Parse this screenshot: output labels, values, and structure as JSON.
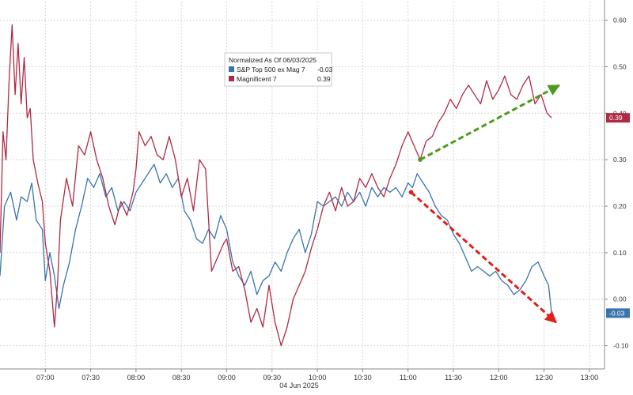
{
  "chart_data": {
    "type": "line",
    "legend_title": "Normalized As Of 06/03/2025",
    "date_label": "04 Jun 2025",
    "x_ticks": [
      "07:00",
      "07:30",
      "08:00",
      "08:30",
      "09:00",
      "09:30",
      "10:00",
      "10:30",
      "11:00",
      "11:30",
      "12:00",
      "12:30",
      "13:00"
    ],
    "y_ticks": [
      "0.60",
      "0.50",
      "0.40",
      "0.30",
      "0.20",
      "0.10",
      "0.00",
      "-0.10"
    ],
    "ylim": [
      -0.15,
      0.64
    ],
    "xlim": [
      "06:30",
      "13:10"
    ],
    "grid": true,
    "legend_position": "top-center",
    "series": [
      {
        "name": "S&P Top 500 ex Mag 7",
        "last_label": "-0.03",
        "color": "#3a74ad",
        "points": [
          [
            "06:30",
            0.05
          ],
          [
            "06:33",
            0.2
          ],
          [
            "06:37",
            0.23
          ],
          [
            "06:41",
            0.17
          ],
          [
            "06:44",
            0.22
          ],
          [
            "06:48",
            0.21
          ],
          [
            "06:51",
            0.25
          ],
          [
            "06:54",
            0.17
          ],
          [
            "06:58",
            0.15
          ],
          [
            "07:00",
            0.04
          ],
          [
            "07:03",
            0.1
          ],
          [
            "07:06",
            0.05
          ],
          [
            "07:09",
            -0.02
          ],
          [
            "07:12",
            0.03
          ],
          [
            "07:16",
            0.08
          ],
          [
            "07:20",
            0.15
          ],
          [
            "07:24",
            0.2
          ],
          [
            "07:28",
            0.26
          ],
          [
            "07:32",
            0.24
          ],
          [
            "07:36",
            0.27
          ],
          [
            "07:40",
            0.22
          ],
          [
            "07:44",
            0.24
          ],
          [
            "07:48",
            0.19
          ],
          [
            "07:52",
            0.21
          ],
          [
            "07:56",
            0.19
          ],
          [
            "08:00",
            0.23
          ],
          [
            "08:04",
            0.25
          ],
          [
            "08:08",
            0.27
          ],
          [
            "08:12",
            0.29
          ],
          [
            "08:16",
            0.25
          ],
          [
            "08:20",
            0.27
          ],
          [
            "08:24",
            0.24
          ],
          [
            "08:28",
            0.26
          ],
          [
            "08:32",
            0.19
          ],
          [
            "08:36",
            0.17
          ],
          [
            "08:40",
            0.13
          ],
          [
            "08:44",
            0.12
          ],
          [
            "08:48",
            0.15
          ],
          [
            "08:52",
            0.13
          ],
          [
            "08:56",
            0.18
          ],
          [
            "09:00",
            0.15
          ],
          [
            "09:04",
            0.08
          ],
          [
            "09:08",
            0.05
          ],
          [
            "09:12",
            0.03
          ],
          [
            "09:16",
            0.06
          ],
          [
            "09:20",
            0.01
          ],
          [
            "09:24",
            0.04
          ],
          [
            "09:28",
            0.05
          ],
          [
            "09:32",
            0.08
          ],
          [
            "09:36",
            0.06
          ],
          [
            "09:40",
            0.1
          ],
          [
            "09:44",
            0.13
          ],
          [
            "09:48",
            0.15
          ],
          [
            "09:52",
            0.1
          ],
          [
            "09:56",
            0.14
          ],
          [
            "10:00",
            0.21
          ],
          [
            "10:04",
            0.2
          ],
          [
            "10:08",
            0.21
          ],
          [
            "10:12",
            0.22
          ],
          [
            "10:16",
            0.2
          ],
          [
            "10:20",
            0.23
          ],
          [
            "10:24",
            0.21
          ],
          [
            "10:28",
            0.23
          ],
          [
            "10:32",
            0.2
          ],
          [
            "10:36",
            0.24
          ],
          [
            "10:40",
            0.22
          ],
          [
            "10:44",
            0.24
          ],
          [
            "10:48",
            0.23
          ],
          [
            "10:52",
            0.24
          ],
          [
            "10:56",
            0.22
          ],
          [
            "11:00",
            0.25
          ],
          [
            "11:03",
            0.24
          ],
          [
            "11:06",
            0.27
          ],
          [
            "11:10",
            0.25
          ],
          [
            "11:14",
            0.23
          ],
          [
            "11:18",
            0.2
          ],
          [
            "11:22",
            0.18
          ],
          [
            "11:26",
            0.17
          ],
          [
            "11:30",
            0.14
          ],
          [
            "11:34",
            0.12
          ],
          [
            "11:38",
            0.09
          ],
          [
            "11:42",
            0.06
          ],
          [
            "11:46",
            0.07
          ],
          [
            "11:50",
            0.06
          ],
          [
            "11:54",
            0.05
          ],
          [
            "11:58",
            0.06
          ],
          [
            "12:02",
            0.04
          ],
          [
            "12:06",
            0.03
          ],
          [
            "12:10",
            0.01
          ],
          [
            "12:14",
            0.02
          ],
          [
            "12:18",
            0.04
          ],
          [
            "12:22",
            0.07
          ],
          [
            "12:26",
            0.08
          ],
          [
            "12:30",
            0.05
          ],
          [
            "12:33",
            0.03
          ],
          [
            "12:35",
            -0.03
          ]
        ]
      },
      {
        "name": "Magnificent 7",
        "last_label": "0.39",
        "color": "#b02a45",
        "points": [
          [
            "06:30",
            0.1
          ],
          [
            "06:32",
            0.36
          ],
          [
            "06:34",
            0.3
          ],
          [
            "06:36",
            0.47
          ],
          [
            "06:38",
            0.59
          ],
          [
            "06:40",
            0.44
          ],
          [
            "06:42",
            0.55
          ],
          [
            "06:44",
            0.42
          ],
          [
            "06:46",
            0.52
          ],
          [
            "06:48",
            0.39
          ],
          [
            "06:50",
            0.41
          ],
          [
            "06:52",
            0.3
          ],
          [
            "06:55",
            0.25
          ],
          [
            "06:58",
            0.21
          ],
          [
            "07:00",
            0.12
          ],
          [
            "07:03",
            0.06
          ],
          [
            "07:06",
            -0.06
          ],
          [
            "07:08",
            0.03
          ],
          [
            "07:10",
            0.17
          ],
          [
            "07:14",
            0.26
          ],
          [
            "07:18",
            0.2
          ],
          [
            "07:22",
            0.33
          ],
          [
            "07:26",
            0.31
          ],
          [
            "07:30",
            0.36
          ],
          [
            "07:34",
            0.3
          ],
          [
            "07:38",
            0.26
          ],
          [
            "07:42",
            0.2
          ],
          [
            "07:46",
            0.16
          ],
          [
            "07:50",
            0.21
          ],
          [
            "07:54",
            0.18
          ],
          [
            "07:58",
            0.23
          ],
          [
            "08:00",
            0.28
          ],
          [
            "08:02",
            0.36
          ],
          [
            "08:06",
            0.33
          ],
          [
            "08:10",
            0.35
          ],
          [
            "08:14",
            0.31
          ],
          [
            "08:18",
            0.3
          ],
          [
            "08:22",
            0.35
          ],
          [
            "08:26",
            0.3
          ],
          [
            "08:30",
            0.22
          ],
          [
            "08:34",
            0.26
          ],
          [
            "08:38",
            0.19
          ],
          [
            "08:42",
            0.3
          ],
          [
            "08:46",
            0.28
          ],
          [
            "08:50",
            0.06
          ],
          [
            "08:54",
            0.09
          ],
          [
            "08:58",
            0.12
          ],
          [
            "09:00",
            0.13
          ],
          [
            "09:04",
            0.06
          ],
          [
            "09:08",
            0.07
          ],
          [
            "09:12",
            0.02
          ],
          [
            "09:16",
            -0.05
          ],
          [
            "09:20",
            -0.02
          ],
          [
            "09:24",
            -0.06
          ],
          [
            "09:28",
            0.03
          ],
          [
            "09:32",
            -0.05
          ],
          [
            "09:36",
            -0.1
          ],
          [
            "09:40",
            -0.06
          ],
          [
            "09:44",
            0.0
          ],
          [
            "09:48",
            0.03
          ],
          [
            "09:52",
            0.06
          ],
          [
            "09:56",
            0.11
          ],
          [
            "10:00",
            0.15
          ],
          [
            "10:04",
            0.2
          ],
          [
            "10:08",
            0.23
          ],
          [
            "10:12",
            0.19
          ],
          [
            "10:16",
            0.24
          ],
          [
            "10:20",
            0.2
          ],
          [
            "10:24",
            0.21
          ],
          [
            "10:28",
            0.26
          ],
          [
            "10:32",
            0.24
          ],
          [
            "10:36",
            0.27
          ],
          [
            "10:40",
            0.24
          ],
          [
            "10:44",
            0.22
          ],
          [
            "10:48",
            0.26
          ],
          [
            "10:52",
            0.29
          ],
          [
            "10:56",
            0.33
          ],
          [
            "11:00",
            0.36
          ],
          [
            "11:04",
            0.33
          ],
          [
            "11:08",
            0.3
          ],
          [
            "11:12",
            0.34
          ],
          [
            "11:16",
            0.35
          ],
          [
            "11:20",
            0.38
          ],
          [
            "11:24",
            0.4
          ],
          [
            "11:28",
            0.43
          ],
          [
            "11:32",
            0.41
          ],
          [
            "11:36",
            0.44
          ],
          [
            "11:40",
            0.46
          ],
          [
            "11:44",
            0.44
          ],
          [
            "11:48",
            0.42
          ],
          [
            "11:52",
            0.47
          ],
          [
            "11:56",
            0.43
          ],
          [
            "12:00",
            0.45
          ],
          [
            "12:04",
            0.48
          ],
          [
            "12:08",
            0.44
          ],
          [
            "12:12",
            0.43
          ],
          [
            "12:16",
            0.46
          ],
          [
            "12:20",
            0.48
          ],
          [
            "12:24",
            0.42
          ],
          [
            "12:28",
            0.44
          ],
          [
            "12:32",
            0.4
          ],
          [
            "12:35",
            0.39
          ]
        ]
      }
    ],
    "annotations": {
      "up_arrow": {
        "color": "#4f9a1e",
        "from": [
          "11:08",
          0.3
        ],
        "to": [
          "12:40",
          0.46
        ]
      },
      "down_arrow": {
        "color": "#e0201b",
        "from": [
          "11:02",
          0.23
        ],
        "to": [
          "12:38",
          -0.05
        ]
      }
    }
  }
}
